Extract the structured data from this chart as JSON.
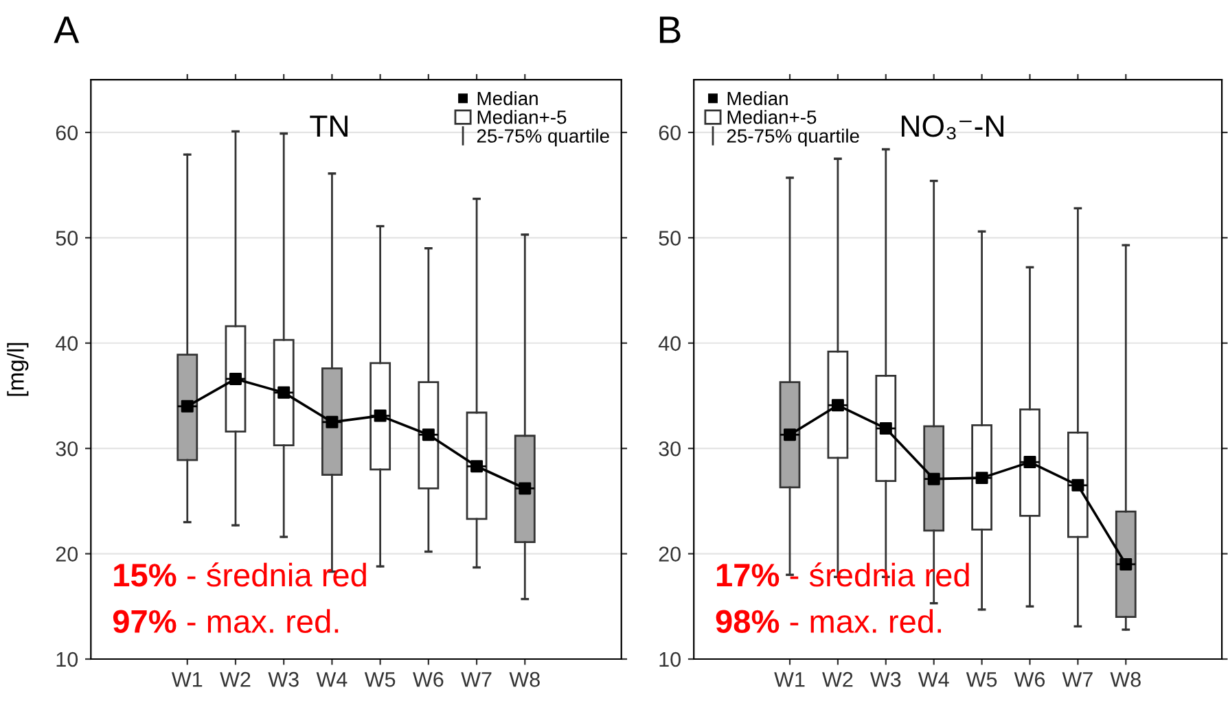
{
  "chart_data": [
    {
      "type": "box",
      "title": "A",
      "subtitle": "TN",
      "ylabel": "[mg/l]",
      "categories": [
        "W1",
        "W2",
        "W3",
        "W4",
        "W5",
        "W6",
        "W7",
        "W8"
      ],
      "ylim": [
        10,
        65
      ],
      "yticks": [
        10,
        20,
        30,
        40,
        50,
        60
      ],
      "grid": "y",
      "legend": "top right",
      "series": [
        {
          "name": "Median+-5",
          "colors": [
            "#a6a6a6",
            "#ffffff",
            "#ffffff",
            "#a6a6a6",
            "#ffffff",
            "#ffffff",
            "#ffffff",
            "#a6a6a6"
          ],
          "boxes": [
            {
              "low": 23.0,
              "q1": 28.9,
              "median": 34.0,
              "q3": 38.9,
              "high": 57.9
            },
            {
              "low": 22.7,
              "q1": 31.6,
              "median": 36.6,
              "q3": 41.6,
              "high": 60.1
            },
            {
              "low": 21.6,
              "q1": 30.3,
              "median": 35.3,
              "q3": 40.3,
              "high": 59.9
            },
            {
              "low": 18.3,
              "q1": 27.5,
              "median": 32.5,
              "q3": 37.6,
              "high": 56.1
            },
            {
              "low": 18.8,
              "q1": 28.0,
              "median": 33.1,
              "q3": 38.1,
              "high": 51.1
            },
            {
              "low": 20.2,
              "q1": 26.2,
              "median": 31.3,
              "q3": 36.3,
              "high": 49.0
            },
            {
              "low": 18.7,
              "q1": 23.3,
              "median": 28.3,
              "q3": 33.4,
              "high": 53.7
            },
            {
              "low": 15.7,
              "q1": 21.1,
              "median": 26.2,
              "q3": 31.2,
              "high": 50.3
            }
          ]
        },
        {
          "type": "line",
          "name": "Median",
          "color": "#000000",
          "marker": "square",
          "values": [
            34.0,
            36.6,
            35.3,
            32.5,
            33.1,
            31.3,
            28.3,
            26.2
          ]
        }
      ],
      "annotations": [
        "25-75% quartile",
        "15% - średnia red",
        "97% - max. red."
      ]
    },
    {
      "type": "box",
      "title": "B",
      "subtitle": "NO₃⁻-N",
      "categories": [
        "W1",
        "W2",
        "W3",
        "W4",
        "W5",
        "W6",
        "W7",
        "W8"
      ],
      "ylim": [
        10,
        65
      ],
      "yticks": [
        10,
        20,
        30,
        40,
        50,
        60
      ],
      "grid": "y",
      "legend": "top left",
      "series": [
        {
          "name": "Median+-5",
          "colors": [
            "#a6a6a6",
            "#ffffff",
            "#ffffff",
            "#a6a6a6",
            "#ffffff",
            "#ffffff",
            "#ffffff",
            "#a6a6a6"
          ],
          "boxes": [
            {
              "low": 18.0,
              "q1": 26.3,
              "median": 31.3,
              "q3": 36.3,
              "high": 55.7
            },
            {
              "low": 17.8,
              "q1": 29.1,
              "median": 34.1,
              "q3": 39.2,
              "high": 57.5
            },
            {
              "low": 17.8,
              "q1": 26.9,
              "median": 31.9,
              "q3": 36.9,
              "high": 58.4
            },
            {
              "low": 15.3,
              "q1": 22.2,
              "median": 27.1,
              "q3": 32.1,
              "high": 55.4
            },
            {
              "low": 14.7,
              "q1": 22.3,
              "median": 27.2,
              "q3": 32.2,
              "high": 50.6
            },
            {
              "low": 15.0,
              "q1": 23.6,
              "median": 28.7,
              "q3": 33.7,
              "high": 47.2
            },
            {
              "low": 13.1,
              "q1": 21.6,
              "median": 26.5,
              "q3": 31.5,
              "high": 52.8
            },
            {
              "low": 12.8,
              "q1": 14.0,
              "median": 19.0,
              "q3": 24.0,
              "high": 49.3
            }
          ]
        },
        {
          "type": "line",
          "name": "Median",
          "color": "#000000",
          "marker": "square",
          "values": [
            31.3,
            34.1,
            31.9,
            27.1,
            27.2,
            28.7,
            26.5,
            19.0
          ]
        }
      ],
      "annotations": [
        "25-75% quartile",
        "17% - średnia red",
        "98% - max. red."
      ]
    }
  ]
}
